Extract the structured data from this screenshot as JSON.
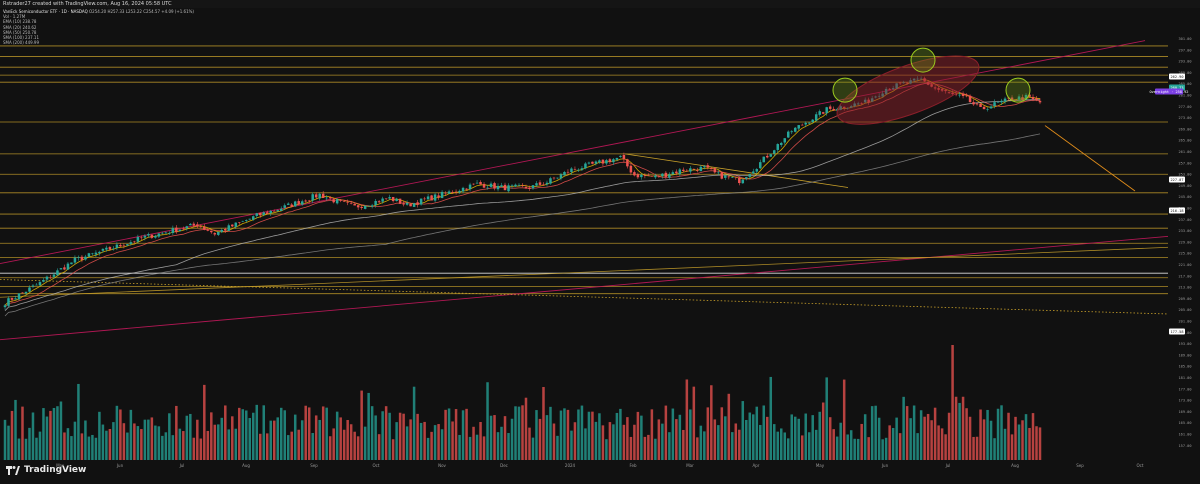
{
  "header": {
    "text": "Rstrader27 created with TradingView.com, Aug 16, 2024 05:58 UTC"
  },
  "legend": {
    "symbol": "VanEck Semiconductor ETF · 1D · NASDAQ",
    "ohlc": "O254.20 H257.33 L253.22 C254.57 +4.09 (+1.61%)",
    "lines": [
      "Vol · 1.27M",
      "EMA (10) 238.78",
      "SMA (20) 240.62",
      "SMA (50) 250.78",
      "SMA (100) 237.11",
      "SMA (200) 449.99"
    ]
  },
  "branding": {
    "name": "TradingView"
  },
  "colors": {
    "bg": "#111111",
    "up": "#26a69a",
    "down": "#ef5350",
    "hline": "#c8a02a",
    "trend": "#c2185b",
    "ellipse": "#8b1f2a",
    "circle": "#9ccc1f",
    "ema": "#e6b800",
    "sma50": "#bdbdbd",
    "sma200": "#9e9e9e"
  },
  "chart_data": {
    "type": "candlestick",
    "x_axis": [
      "Mar",
      "Jun",
      "Jul",
      "Aug",
      "Sep",
      "Oct",
      "Nov",
      "Dec",
      "2024",
      "Feb",
      "Mar",
      "Apr",
      "May",
      "Jun",
      "Jul",
      "Aug",
      "Sep",
      "Oct"
    ],
    "ylim": [
      150,
      315
    ],
    "y_ticks": [
      "301.00",
      "297.00",
      "293.00",
      "289.00",
      "285.00",
      "281.00",
      "277.00",
      "273.00",
      "269.00",
      "265.00",
      "261.00",
      "257.00",
      "253.00",
      "249.00",
      "245.00",
      "241.00",
      "237.00",
      "233.00",
      "229.00",
      "225.00",
      "221.00",
      "217.00",
      "213.00",
      "209.00",
      "205.00",
      "201.00",
      "197.00",
      "193.00",
      "189.00",
      "185.00",
      "181.00",
      "177.00",
      "173.00",
      "169.00",
      "165.00",
      "161.00",
      "157.00"
    ],
    "price_labels": [
      {
        "text": "262.90",
        "value": 262.9,
        "color": "#ffffff"
      },
      {
        "text": "260.73",
        "value": 260.73,
        "color": "#26a69a"
      },
      {
        "text": "Overnight · 258.92",
        "value": 258.92,
        "color": "#7b3fe4"
      },
      {
        "text": "227.07",
        "value": 227.07,
        "color": "#ffffff"
      },
      {
        "text": "216.18",
        "value": 216.18,
        "color": "#ffffff"
      },
      {
        "text": "177.58",
        "value": 177.58,
        "color": "#ffffff"
      }
    ],
    "horizontal_levels": [
      306.0,
      300.0,
      294.0,
      289.5,
      285.5,
      263.0,
      245.0,
      233.5,
      223.0,
      211.0,
      203.0,
      194.5,
      186.5,
      175.0,
      170.0,
      166.0
    ],
    "close_anchors": [
      [
        0,
        161
      ],
      [
        10,
        172
      ],
      [
        20,
        185
      ],
      [
        28,
        190
      ],
      [
        40,
        198
      ],
      [
        55,
        205
      ],
      [
        60,
        200
      ],
      [
        72,
        210
      ],
      [
        80,
        215
      ],
      [
        90,
        222
      ],
      [
        95,
        218
      ],
      [
        100,
        215
      ],
      [
        110,
        220
      ],
      [
        115,
        216
      ],
      [
        125,
        222
      ],
      [
        135,
        228
      ],
      [
        142,
        226
      ],
      [
        150,
        226
      ],
      [
        155,
        229
      ],
      [
        162,
        236
      ],
      [
        170,
        240
      ],
      [
        176,
        243
      ],
      [
        180,
        233
      ],
      [
        186,
        232
      ],
      [
        194,
        236
      ],
      [
        200,
        237
      ],
      [
        204,
        233
      ],
      [
        210,
        230
      ],
      [
        215,
        238
      ],
      [
        225,
        258
      ],
      [
        235,
        270
      ],
      [
        240,
        272
      ],
      [
        246,
        274
      ],
      [
        252,
        282
      ],
      [
        258,
        285
      ],
      [
        262,
        287
      ],
      [
        266,
        282
      ],
      [
        270,
        279
      ],
      [
        275,
        276
      ],
      [
        279,
        270
      ],
      [
        283,
        273
      ],
      [
        288,
        276
      ],
      [
        292,
        277
      ],
      [
        296,
        274
      ]
    ],
    "volume_ylim": [
      0,
      100
    ]
  }
}
